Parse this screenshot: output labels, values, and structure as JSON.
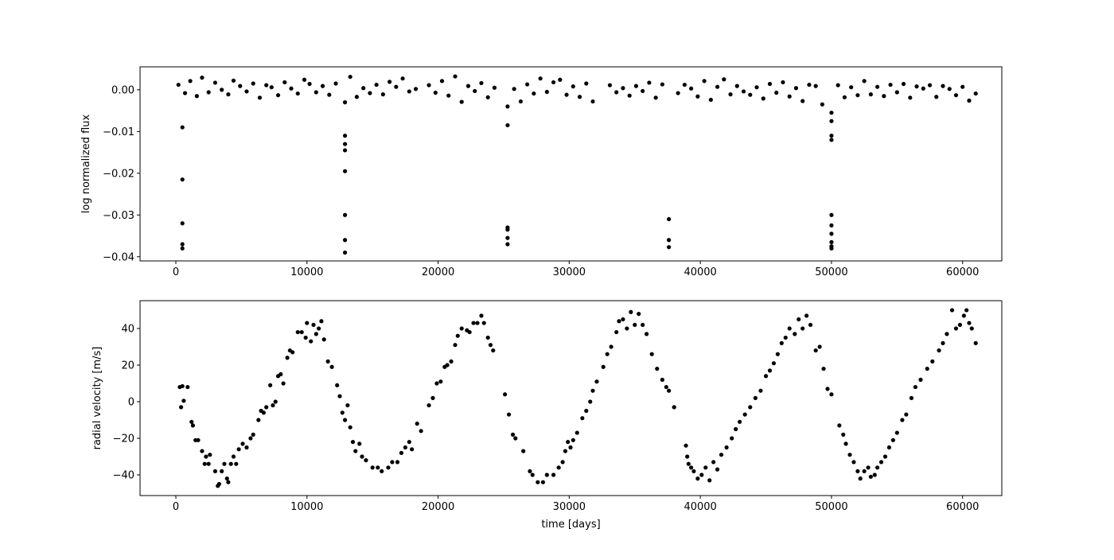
{
  "chart_data": [
    {
      "type": "scatter",
      "ylabel": "log normalized flux",
      "color": "#000000",
      "xlim": [
        -2730,
        62990
      ],
      "ylim": [
        -0.041,
        0.0055
      ],
      "xticks": [
        0,
        10000,
        20000,
        30000,
        40000,
        50000,
        60000
      ],
      "yticks": [
        {
          "value": 0,
          "label": "0.00"
        },
        {
          "value": -0.01,
          "label": "−0.01"
        },
        {
          "value": -0.02,
          "label": "−0.02"
        },
        {
          "value": -0.03,
          "label": "−0.03"
        },
        {
          "value": -0.04,
          "label": "−0.04"
        }
      ],
      "x": [
        200,
        700,
        1100,
        1600,
        2000,
        2500,
        3000,
        3500,
        4000,
        4400,
        4900,
        5400,
        5900,
        6400,
        6900,
        7300,
        7800,
        8300,
        8800,
        9300,
        9800,
        10200,
        10700,
        11200,
        11700,
        12200,
        13300,
        13800,
        14300,
        14800,
        15300,
        15800,
        16300,
        16800,
        17300,
        17800,
        18300,
        19300,
        19800,
        20300,
        20800,
        21300,
        21800,
        22300,
        22800,
        23300,
        23800,
        24300,
        25800,
        26300,
        26800,
        27300,
        27800,
        28300,
        28800,
        29300,
        29800,
        30300,
        30800,
        31300,
        31800,
        33100,
        33600,
        34100,
        34600,
        35100,
        35600,
        36100,
        36600,
        37100,
        38300,
        38800,
        39300,
        39800,
        40300,
        40800,
        41300,
        41800,
        42300,
        42800,
        43300,
        43800,
        44300,
        44800,
        45300,
        45800,
        46300,
        46800,
        47300,
        47800,
        48300,
        48800,
        49300,
        50500,
        51000,
        51500,
        52000,
        52500,
        53000,
        53500,
        54000,
        54500,
        55000,
        55500,
        56000,
        56500,
        57000,
        57500,
        58000,
        58500,
        59000,
        59500,
        60000,
        60500,
        61000,
        500,
        500,
        500,
        500,
        500,
        12900,
        12900,
        12900,
        12900,
        12900,
        12900,
        12900,
        12900,
        25300,
        25300,
        25300,
        25300,
        25300,
        25300,
        37600,
        37600,
        37600,
        50000,
        50000,
        50000,
        50000,
        50000,
        50000,
        50000,
        50000,
        50000,
        50000
      ],
      "values": [
        0.0012,
        -0.0008,
        0.0021,
        -0.0015,
        0.0029,
        -0.0006,
        0.0017,
        0.0,
        -0.0011,
        0.0022,
        0.0009,
        -0.0004,
        0.0015,
        -0.0019,
        0.0011,
        0.0006,
        -0.0013,
        0.0018,
        0.0003,
        -0.0009,
        0.0024,
        0.0014,
        -0.0006,
        0.0009,
        -0.0012,
        0.0015,
        0.0031,
        -0.0017,
        0.0004,
        -0.0008,
        0.0012,
        -0.0011,
        0.0019,
        0.0007,
        0.0027,
        -0.0004,
        0.0002,
        0.0011,
        -0.0007,
        0.0021,
        -0.0014,
        0.0032,
        -0.0029,
        0.0009,
        -0.0003,
        0.0016,
        -0.0018,
        0.0005,
        0.0002,
        -0.0028,
        0.0013,
        -0.0009,
        0.0027,
        -0.0005,
        0.0018,
        0.0024,
        -0.0012,
        0.0008,
        -0.0017,
        0.0015,
        -0.0028,
        0.0011,
        -0.0006,
        0.0004,
        -0.0014,
        0.0009,
        -0.0003,
        0.0017,
        -0.0019,
        0.0013,
        -0.0008,
        0.0012,
        0.0003,
        -0.0016,
        0.0021,
        -0.0024,
        0.0007,
        0.0025,
        -0.0011,
        0.0009,
        -0.0004,
        -0.0012,
        0.0006,
        -0.0021,
        0.0014,
        -0.0007,
        0.0018,
        -0.0016,
        0.0004,
        -0.0027,
        0.0012,
        0.0009,
        -0.0035,
        0.0011,
        -0.0018,
        0.0006,
        -0.0013,
        0.0021,
        -0.0011,
        0.0007,
        -0.0015,
        0.0012,
        -0.0006,
        0.0014,
        -0.0019,
        0.0008,
        0.0003,
        0.0011,
        -0.0017,
        0.0009,
        0.0002,
        -0.0013,
        0.0007,
        -0.0026,
        -0.0009,
        -0.009,
        -0.0215,
        -0.032,
        -0.037,
        -0.038,
        -0.003,
        -0.011,
        -0.013,
        -0.0145,
        -0.0195,
        -0.03,
        -0.036,
        -0.039,
        -0.004,
        -0.0085,
        -0.033,
        -0.0335,
        -0.0355,
        -0.037,
        -0.031,
        -0.036,
        -0.0377,
        -0.0055,
        -0.0075,
        -0.011,
        -0.012,
        -0.03,
        -0.0325,
        -0.0345,
        -0.0365,
        -0.0375,
        -0.038
      ]
    },
    {
      "type": "scatter",
      "ylabel": "radial velocity [m/s]",
      "xlabel": "time [days]",
      "color": "#000000",
      "xlim": [
        -2730,
        62990
      ],
      "ylim": [
        -51.3,
        55.2
      ],
      "xticks": [
        0,
        10000,
        20000,
        30000,
        40000,
        50000,
        60000
      ],
      "yticks": [
        {
          "value": -40,
          "label": "−40"
        },
        {
          "value": -20,
          "label": "−20"
        },
        0,
        20,
        40
      ],
      "x": [
        300,
        400,
        500,
        600,
        900,
        1200,
        1300,
        1500,
        1700,
        2000,
        2200,
        2300,
        2500,
        2600,
        3000,
        3200,
        3300,
        3500,
        3700,
        3900,
        4000,
        4200,
        4400,
        4600,
        4800,
        5100,
        5400,
        5700,
        5900,
        6300,
        6500,
        6700,
        6900,
        7200,
        7400,
        7600,
        7800,
        8000,
        8200,
        8500,
        8700,
        8900,
        9300,
        9600,
        9900,
        10000,
        10300,
        10500,
        10700,
        10900,
        11100,
        11300,
        11600,
        11900,
        12300,
        12500,
        12700,
        12900,
        13100,
        13300,
        13500,
        13700,
        14000,
        14200,
        14500,
        15000,
        15400,
        15700,
        16200,
        16500,
        16900,
        17200,
        17500,
        17800,
        18000,
        18400,
        18700,
        19300,
        19600,
        19900,
        20200,
        20500,
        20700,
        21000,
        21300,
        21500,
        21800,
        22200,
        22400,
        22700,
        23000,
        23300,
        23500,
        23800,
        24000,
        24200,
        25100,
        25400,
        25700,
        25900,
        26500,
        27000,
        27200,
        27600,
        28000,
        28300,
        28800,
        29200,
        29500,
        29700,
        29900,
        30100,
        30300,
        30600,
        31000,
        31300,
        31600,
        31800,
        32100,
        32600,
        32900,
        33200,
        33600,
        33800,
        34100,
        34400,
        34700,
        35000,
        35300,
        35600,
        35900,
        36300,
        36700,
        37100,
        37400,
        37600,
        38000,
        38900,
        39000,
        39100,
        39300,
        39500,
        39800,
        40100,
        40400,
        40700,
        41000,
        41300,
        41600,
        42000,
        42400,
        42700,
        43000,
        43400,
        43800,
        44200,
        44600,
        45000,
        45300,
        45600,
        45900,
        46200,
        46500,
        46800,
        47200,
        47500,
        47800,
        48100,
        48400,
        48800,
        49100,
        49400,
        49700,
        50000,
        50600,
        50900,
        51100,
        51400,
        51700,
        52000,
        52200,
        52500,
        52800,
        53000,
        53300,
        53500,
        53800,
        54100,
        54400,
        54700,
        55000,
        55400,
        55700,
        56100,
        56400,
        56800,
        57300,
        57700,
        58200,
        58500,
        58800,
        59200,
        59500,
        59800,
        60100,
        60300,
        60500,
        60700,
        61000
      ],
      "values": [
        8,
        -3,
        8.5,
        0.5,
        8,
        -11,
        -13,
        -21,
        -21,
        -27,
        -34,
        -30,
        -34,
        -29,
        -38,
        -46,
        -45,
        -38,
        -34,
        -42,
        -44,
        -34,
        -30,
        -34,
        -26,
        -23,
        -25,
        -20,
        -18,
        -10,
        -5,
        -6,
        -3,
        9,
        -2,
        0,
        14,
        15,
        10,
        24,
        28,
        27,
        38,
        38,
        35,
        43,
        33,
        42,
        37,
        40,
        44,
        34,
        22,
        19,
        9,
        3,
        -6,
        -10,
        -2,
        -14,
        -22,
        -27,
        -23,
        -30,
        -32,
        -36,
        -36,
        -38,
        -36,
        -33,
        -33,
        -28,
        -25,
        -22,
        -26,
        -12,
        -16,
        -2,
        2,
        10,
        11,
        19,
        20,
        22,
        31,
        36,
        40,
        39,
        38,
        43,
        43,
        47,
        43,
        35,
        31,
        28,
        4,
        -7,
        -18,
        -20,
        -27,
        -38,
        -40,
        -44,
        -44,
        -40,
        -40,
        -36,
        -33,
        -27,
        -22,
        -25,
        -21,
        -17,
        -9,
        -5,
        0,
        6,
        11,
        19,
        26,
        30,
        38,
        44,
        45,
        40,
        49,
        42,
        48,
        42,
        37,
        26,
        18,
        12,
        8,
        6,
        -3,
        -24,
        -30,
        -34,
        -36,
        -38,
        -42,
        -40,
        -36,
        -43,
        -33,
        -37,
        -29,
        -25,
        -20,
        -15,
        -11,
        -7,
        -3,
        2,
        6,
        14,
        17,
        21,
        26,
        32,
        35,
        40,
        37,
        45,
        40,
        47,
        42,
        28,
        30,
        18,
        7,
        4,
        -13,
        -18,
        -23,
        -29,
        -33,
        -38,
        -42,
        -38,
        -36,
        -41,
        -40,
        -36,
        -33,
        -30,
        -25,
        -21,
        -17,
        -10,
        -7,
        2,
        8,
        12,
        18,
        22,
        28,
        32,
        37,
        50,
        40,
        42,
        47,
        50,
        43,
        40,
        32
      ]
    }
  ]
}
